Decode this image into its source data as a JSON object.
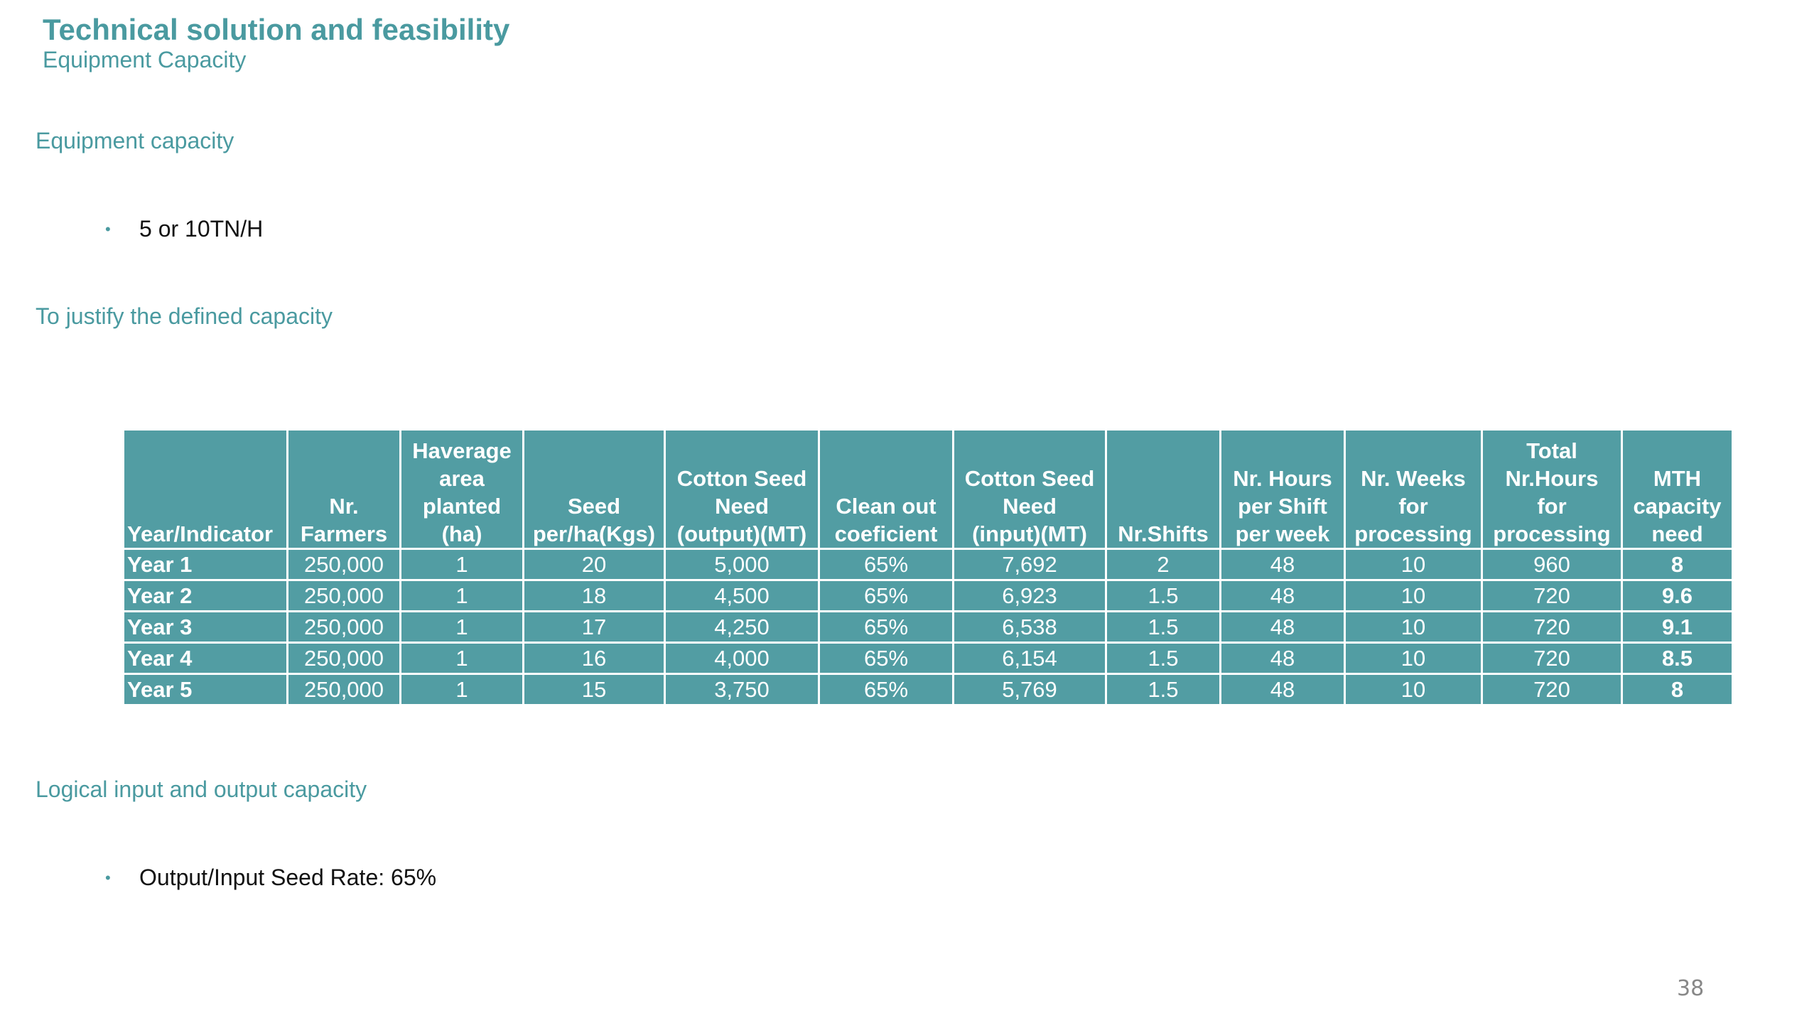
{
  "title": "Technical solution and feasibility",
  "subtitle": "Equipment Capacity",
  "sections": {
    "equipment": {
      "heading": "Equipment capacity",
      "bullet": "5 or 10TN/H"
    },
    "justify": {
      "heading": "To justify the defined capacity"
    },
    "logical": {
      "heading": "Logical input and output capacity",
      "bullet": "Output/Input Seed Rate: 65%"
    }
  },
  "table": {
    "headers": [
      [
        "Year/Indicator"
      ],
      [
        "Nr.",
        "Farmers"
      ],
      [
        "Haverage",
        "area",
        "planted",
        "(ha)"
      ],
      [
        "Seed",
        "per/ha(Kgs)"
      ],
      [
        "Cotton Seed",
        "Need",
        "(output)(MT)"
      ],
      [
        "Clean out",
        "coeficient"
      ],
      [
        "Cotton Seed",
        "Need",
        "(input)(MT)"
      ],
      [
        "Nr.Shifts"
      ],
      [
        "Nr. Hours",
        "per Shift",
        "per week"
      ],
      [
        "Nr. Weeks",
        "for",
        "processing"
      ],
      [
        "Total",
        "Nr.Hours",
        "for",
        "processing"
      ],
      [
        "MTH",
        "capacity",
        "need"
      ]
    ],
    "rows": [
      [
        "Year 1",
        "250,000",
        "1",
        "20",
        "5,000",
        "65%",
        "7,692",
        "2",
        "48",
        "10",
        "960",
        "8"
      ],
      [
        "Year 2",
        "250,000",
        "1",
        "18",
        "4,500",
        "65%",
        "6,923",
        "1.5",
        "48",
        "10",
        "720",
        "9.6"
      ],
      [
        "Year 3",
        "250,000",
        "1",
        "17",
        "4,250",
        "65%",
        "6,538",
        "1.5",
        "48",
        "10",
        "720",
        "9.1"
      ],
      [
        "Year 4",
        "250,000",
        "1",
        "16",
        "4,000",
        "65%",
        "6,154",
        "1.5",
        "48",
        "10",
        "720",
        "8.5"
      ],
      [
        "Year 5",
        "250,000",
        "1",
        "15",
        "3,750",
        "65%",
        "5,769",
        "1.5",
        "48",
        "10",
        "720",
        "8"
      ]
    ]
  },
  "page_number": "38",
  "colors": {
    "accent": "#4a9aa0",
    "table_fill": "#529da3",
    "table_text": "#ffffff"
  }
}
